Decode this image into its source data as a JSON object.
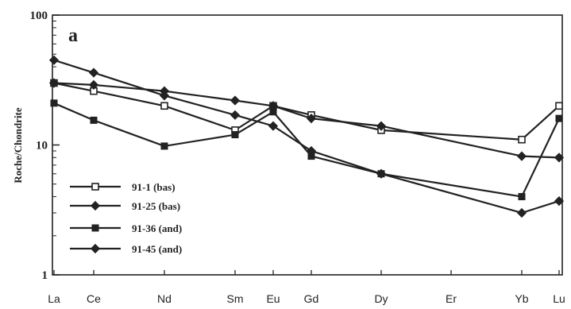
{
  "chart_data": {
    "type": "line",
    "panel_label": "a",
    "ylabel": "Roche/Chondrite",
    "yscale": "log",
    "ylim": [
      1,
      100
    ],
    "yticks": [
      "1",
      "10",
      "100"
    ],
    "categories": [
      "La",
      "Ce",
      "Nd",
      "Sm",
      "Eu",
      "Gd",
      "Dy",
      "Er",
      "Yb",
      "Lu"
    ],
    "legend_position": "lower-left",
    "series": [
      {
        "name": "91-1 (bas)",
        "marker": "open-square",
        "values": [
          30,
          26,
          20,
          13,
          20,
          17,
          13,
          null,
          11,
          20
        ]
      },
      {
        "name": "91-25 (bas)",
        "marker": "filled-diamond",
        "values": [
          30,
          29,
          26,
          22,
          20,
          16,
          14,
          null,
          8.2,
          8
        ]
      },
      {
        "name": "91-36 (and)",
        "marker": "filled-square",
        "values": [
          21,
          15.5,
          9.8,
          12,
          18,
          8.2,
          6,
          null,
          4,
          16
        ]
      },
      {
        "name": "91-45 (and)",
        "marker": "filled-diamond",
        "values": [
          45,
          36,
          24,
          17,
          14,
          9,
          6,
          null,
          3,
          3.7
        ]
      }
    ]
  }
}
